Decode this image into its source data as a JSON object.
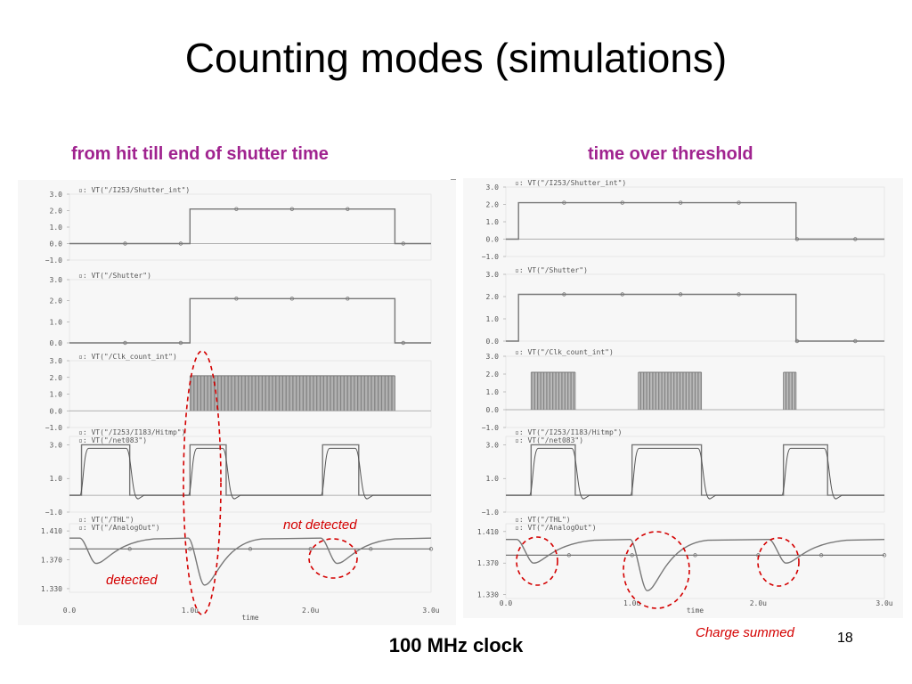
{
  "slide": {
    "title": "Counting modes (simulations)",
    "left_heading": "from hit till end of shutter time",
    "right_heading": "time over threshold",
    "footer": "100 MHz clock",
    "page_number": "18"
  },
  "annotations": {
    "not_detected": "not detected",
    "detected": "detected",
    "charge_summed": "Charge summed"
  },
  "colors": {
    "heading": "#a0238f",
    "annotation": "#d40000",
    "trace": "#777777",
    "baseline": "#999999"
  },
  "chart_data": [
    {
      "type": "line",
      "title": "from hit till end of shutter time",
      "xlabel": "time",
      "x_ticks": [
        "0.0",
        "1.0u",
        "2.0u",
        "3.0u"
      ],
      "xlim": [
        0,
        3.0
      ],
      "x_unit": "us",
      "panels": [
        {
          "legend": [
            "VT(\"/I253/Shutter_int\")"
          ],
          "y_ticks": [
            "3.0",
            "2.0",
            "1.0",
            "0.0",
            "-1.0"
          ],
          "ylim": [
            -1.0,
            3.0
          ],
          "series": [
            {
              "x": [
                0,
                1.0,
                1.0,
                2.7,
                2.7,
                3.0
              ],
              "y": [
                0,
                0,
                2.1,
                2.1,
                0,
                0
              ]
            }
          ]
        },
        {
          "legend": [
            "VT(\"/Shutter\")"
          ],
          "y_ticks": [
            "3.0",
            "2.0",
            "1.0",
            "0.0"
          ],
          "ylim": [
            0,
            3.0
          ],
          "series": [
            {
              "x": [
                0,
                1.0,
                1.0,
                2.7,
                2.7,
                3.0
              ],
              "y": [
                0,
                0,
                2.1,
                2.1,
                0,
                0
              ]
            }
          ]
        },
        {
          "legend": [
            "VT(\"/Clk_count_int\")"
          ],
          "y_ticks": [
            "3.0",
            "2.0",
            "1.0",
            "0.0",
            "-1.0"
          ],
          "ylim": [
            -1.0,
            3.0
          ],
          "clock_bursts": [
            [
              1.0,
              2.7
            ]
          ],
          "clock_high": 2.1
        },
        {
          "legend": [
            "VT(\"/I253/I183/Hitmp\")",
            "VT(\"/net083\")"
          ],
          "y_ticks": [
            "3.0",
            "1.0",
            "-1.0"
          ],
          "ylim": [
            -1.0,
            3.5
          ],
          "pulses": [
            [
              0.1,
              0.5
            ],
            [
              1.0,
              1.3
            ],
            [
              2.1,
              2.4
            ]
          ],
          "pulse_high": 3.0
        },
        {
          "legend": [
            "VT(\"/THL\")",
            "VT(\"/AnalogOut\")"
          ],
          "y_ticks": [
            "1.410",
            "1.370",
            "1.330"
          ],
          "ylim": [
            1.325,
            1.42
          ],
          "threshold": 1.385,
          "baseline": 1.4,
          "dips": [
            [
              0.1,
              1.365
            ],
            [
              1.0,
              1.335
            ],
            [
              2.1,
              1.365
            ]
          ]
        }
      ]
    },
    {
      "type": "line",
      "title": "time over threshold",
      "xlabel": "time",
      "x_ticks": [
        "0.0",
        "1.0u",
        "2.0u",
        "3.0u"
      ],
      "xlim": [
        0,
        3.0
      ],
      "x_unit": "us",
      "panels": [
        {
          "legend": [
            "VT(\"/I253/Shutter_int\")"
          ],
          "y_ticks": [
            "3.0",
            "2.0",
            "1.0",
            "0.0",
            "-1.0"
          ],
          "ylim": [
            -1.0,
            3.0
          ],
          "series": [
            {
              "x": [
                0,
                0.1,
                0.1,
                2.3,
                2.3,
                3.0
              ],
              "y": [
                0,
                0,
                2.1,
                2.1,
                0,
                0
              ]
            }
          ]
        },
        {
          "legend": [
            "VT(\"/Shutter\")"
          ],
          "y_ticks": [
            "3.0",
            "2.0",
            "1.0",
            "0.0"
          ],
          "ylim": [
            0,
            3.0
          ],
          "series": [
            {
              "x": [
                0,
                0.1,
                0.1,
                2.3,
                2.3,
                3.0
              ],
              "y": [
                0,
                0,
                2.1,
                2.1,
                0,
                0
              ]
            }
          ]
        },
        {
          "legend": [
            "VT(\"/Clk_count_int\")"
          ],
          "y_ticks": [
            "3.0",
            "2.0",
            "1.0",
            "0.0",
            "-1.0"
          ],
          "ylim": [
            -1.0,
            3.0
          ],
          "clock_bursts": [
            [
              0.2,
              0.55
            ],
            [
              1.05,
              1.55
            ],
            [
              2.2,
              2.3
            ]
          ],
          "clock_high": 2.1
        },
        {
          "legend": [
            "VT(\"/I253/I183/Hitmp\")",
            "VT(\"/net083\")"
          ],
          "y_ticks": [
            "3.0",
            "1.0",
            "-1.0"
          ],
          "ylim": [
            -1.0,
            3.5
          ],
          "pulses": [
            [
              0.2,
              0.55
            ],
            [
              1.0,
              1.55
            ],
            [
              2.2,
              2.55
            ]
          ],
          "pulse_high": 3.0
        },
        {
          "legend": [
            "VT(\"/THL\")",
            "VT(\"/AnalogOut\")"
          ],
          "y_ticks": [
            "1.410",
            "1.370",
            "1.330"
          ],
          "ylim": [
            1.325,
            1.42
          ],
          "threshold": 1.38,
          "baseline": 1.4,
          "dips": [
            [
              0.1,
              1.37
            ],
            [
              1.0,
              1.335
            ],
            [
              2.1,
              1.37
            ]
          ]
        }
      ]
    }
  ]
}
